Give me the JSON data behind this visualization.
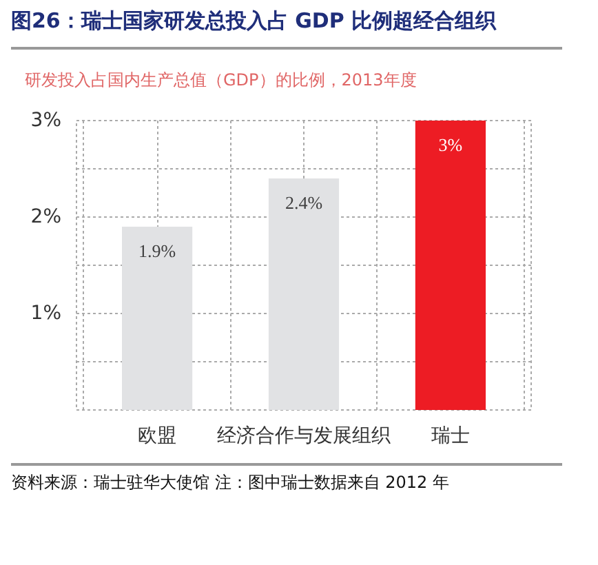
{
  "chart_data": {
    "type": "bar",
    "title": "图26：瑞士国家研发总投入占 GDP 比例超经合组织",
    "subtitle": "研发投入占国内生产总值（GDP）的比例，2013年度",
    "categories": [
      "欧盟",
      "经济合作与发展组织",
      "瑞士"
    ],
    "values": [
      1.9,
      2.4,
      3
    ],
    "colors": [
      "#e1e2e4",
      "#e1e2e4",
      "#ed1c24"
    ],
    "value_labels": [
      "1.9%",
      "2.4%",
      "3%"
    ],
    "ylim": [
      0,
      3
    ],
    "yticks": [
      {
        "value": 0,
        "label": null
      },
      {
        "value": 0.5,
        "label": null
      },
      {
        "value": 1,
        "label": "1%"
      },
      {
        "value": 1.5,
        "label": null
      },
      {
        "value": 2,
        "label": "2%"
      },
      {
        "value": 2.5,
        "label": null
      },
      {
        "value": 3,
        "label": "3%"
      }
    ],
    "grid": true,
    "annotations": [
      "资料来源：瑞士驻华大使馆 注：图中瑞士数据来自 2012 年"
    ]
  }
}
